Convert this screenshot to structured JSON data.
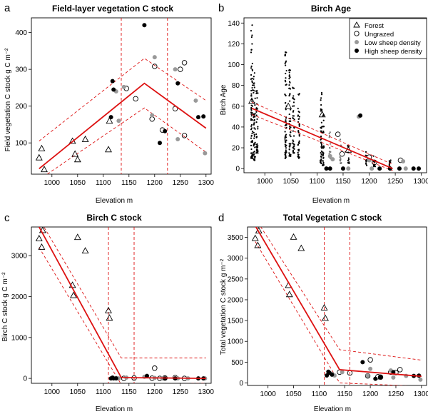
{
  "figure": {
    "panels": [
      "a",
      "b",
      "c",
      "d"
    ]
  },
  "chart_data": [
    {
      "id": "a",
      "letter": "a",
      "type": "scatter",
      "title": "Field-layer vegetation C stock",
      "xlabel": "Elevation m",
      "ylabel": "Field vegetation C stock g C m⁻²",
      "xlim": [
        960,
        1310
      ],
      "ylim": [
        15,
        440
      ],
      "xticks": [
        1000,
        1050,
        1100,
        1150,
        1200,
        1250,
        1300
      ],
      "yticks": [
        100,
        200,
        300,
        400
      ],
      "series": [
        {
          "name": "Forest",
          "marker": "triangle",
          "points": [
            [
              975,
              60
            ],
            [
              980,
              85
            ],
            [
              985,
              28
            ],
            [
              1040,
              105
            ],
            [
              1045,
              70
            ],
            [
              1050,
              55
            ],
            [
              1065,
              110
            ],
            [
              1110,
              82
            ],
            [
              1112,
              160
            ]
          ]
        },
        {
          "name": "Ungrazed",
          "marker": "open-circle",
          "points": [
            [
              1145,
              248
            ],
            [
              1163,
              220
            ],
            [
              1195,
              165
            ],
            [
              1200,
              308
            ],
            [
              1215,
              135
            ],
            [
              1240,
              193
            ],
            [
              1250,
              300
            ],
            [
              1258,
              318
            ],
            [
              1258,
              120
            ]
          ]
        },
        {
          "name": "Low sheep density",
          "marker": "grey-dot",
          "points": [
            [
              1125,
              240
            ],
            [
              1130,
              160
            ],
            [
              1140,
              252
            ],
            [
              1195,
              175
            ],
            [
              1200,
              333
            ],
            [
              1240,
              300
            ],
            [
              1245,
              110
            ],
            [
              1280,
              215
            ],
            [
              1298,
              72
            ]
          ]
        },
        {
          "name": "High sheep density",
          "marker": "black-dot",
          "points": [
            [
              1115,
              170
            ],
            [
              1118,
              268
            ],
            [
              1120,
              245
            ],
            [
              1180,
              420
            ],
            [
              1210,
              100
            ],
            [
              1220,
              132
            ],
            [
              1245,
              262
            ],
            [
              1285,
              170
            ],
            [
              1295,
              172
            ]
          ]
        }
      ],
      "fit": [
        [
          975,
          30
        ],
        [
          1180,
          262
        ],
        [
          1300,
          140
        ]
      ],
      "ci_upper": [
        [
          975,
          105
        ],
        [
          1180,
          330
        ],
        [
          1300,
          215
        ]
      ],
      "ci_lower": [
        [
          975,
          0
        ],
        [
          1180,
          195
        ],
        [
          1300,
          75
        ]
      ],
      "breakpoint_ci": [
        1135,
        1225
      ]
    },
    {
      "id": "b",
      "letter": "b",
      "type": "scatter",
      "title": "Birch Age",
      "xlabel": "Elevation m",
      "ylabel": "Birch Age",
      "xlim": [
        960,
        1310
      ],
      "ylim": [
        -4,
        145
      ],
      "xticks": [
        1000,
        1050,
        1100,
        1150,
        1200,
        1250,
        1300
      ],
      "yticks": [
        0,
        20,
        40,
        60,
        80,
        100,
        120,
        140
      ],
      "legend": {
        "position": "top-right",
        "items": [
          {
            "label": "Forest",
            "marker": "triangle"
          },
          {
            "label": "Ungrazed",
            "marker": "open-circle"
          },
          {
            "label": "Low sheep density",
            "marker": "grey-dot"
          },
          {
            "label": "High sheep density",
            "marker": "black-dot"
          }
        ]
      },
      "columns": [
        {
          "x": 975,
          "ymin": 10,
          "ymax": 138,
          "marker": "tiny-black"
        },
        {
          "x": 980,
          "ymin": 8,
          "ymax": 92,
          "marker": "tiny-black"
        },
        {
          "x": 985,
          "ymin": 15,
          "ymax": 75,
          "marker": "tiny-black"
        },
        {
          "x": 1040,
          "ymin": 10,
          "ymax": 112,
          "marker": "tiny-black"
        },
        {
          "x": 1048,
          "ymin": 12,
          "ymax": 95,
          "marker": "tiny-black"
        },
        {
          "x": 1055,
          "ymin": 15,
          "ymax": 78,
          "marker": "tiny-black"
        },
        {
          "x": 1065,
          "ymin": 10,
          "ymax": 72,
          "marker": "tiny-black"
        },
        {
          "x": 1108,
          "ymin": 5,
          "ymax": 73,
          "marker": "tiny-black"
        },
        {
          "x": 1112,
          "ymin": 3,
          "ymax": 52,
          "marker": "tiny-black"
        },
        {
          "x": 1125,
          "ymin": 10,
          "ymax": 35,
          "marker": "tiny-grey"
        },
        {
          "x": 1145,
          "ymin": 5,
          "ymax": 28,
          "marker": "tiny-grey"
        },
        {
          "x": 1160,
          "ymin": 5,
          "ymax": 22,
          "marker": "tiny-black"
        },
        {
          "x": 1195,
          "ymin": 3,
          "ymax": 16,
          "marker": "tiny-black"
        },
        {
          "x": 1210,
          "ymin": 2,
          "ymax": 12,
          "marker": "tiny-black"
        },
        {
          "x": 1240,
          "ymin": 2,
          "ymax": 8,
          "marker": "tiny-black"
        }
      ],
      "points": [
        {
          "x": 975,
          "y": 65,
          "marker": "triangle"
        },
        {
          "x": 1045,
          "y": 60,
          "marker": "triangle"
        },
        {
          "x": 1110,
          "y": 52,
          "marker": "triangle"
        },
        {
          "x": 1160,
          "y": 18,
          "marker": "triangle"
        },
        {
          "x": 1140,
          "y": 33,
          "marker": "open-circle"
        },
        {
          "x": 1148,
          "y": 14,
          "marker": "open-circle"
        },
        {
          "x": 1200,
          "y": 11,
          "marker": "open-circle"
        },
        {
          "x": 1210,
          "y": 6,
          "marker": "open-circle"
        },
        {
          "x": 1260,
          "y": 8,
          "marker": "open-circle"
        },
        {
          "x": 1125,
          "y": 12,
          "marker": "grey-dot"
        },
        {
          "x": 1180,
          "y": 50,
          "marker": "grey-dot"
        },
        {
          "x": 1200,
          "y": 8,
          "marker": "grey-dot"
        },
        {
          "x": 1265,
          "y": 7,
          "marker": "grey-dot"
        },
        {
          "x": 1130,
          "y": 9,
          "marker": "grey-dot"
        },
        {
          "x": 1183,
          "y": 51,
          "marker": "black-dot"
        },
        {
          "x": 1285,
          "y": 0,
          "marker": "black-dot"
        },
        {
          "x": 1295,
          "y": 0,
          "marker": "black-dot"
        },
        {
          "x": 1118,
          "y": 0,
          "marker": "black-dot"
        },
        {
          "x": 1125,
          "y": 0,
          "marker": "black-dot"
        },
        {
          "x": 1150,
          "y": 0,
          "marker": "black-dot"
        },
        {
          "x": 1220,
          "y": 0,
          "marker": "black-dot"
        },
        {
          "x": 1240,
          "y": 0,
          "marker": "black-dot"
        },
        {
          "x": 1258,
          "y": 0,
          "marker": "black-dot"
        },
        {
          "x": 1160,
          "y": 0,
          "marker": "grey-dot"
        },
        {
          "x": 1205,
          "y": 0,
          "marker": "grey-dot"
        },
        {
          "x": 1270,
          "y": 0,
          "marker": "grey-dot"
        }
      ],
      "fit": [
        [
          975,
          58
        ],
        [
          1245,
          0
        ]
      ],
      "ci_upper": [
        [
          975,
          64
        ],
        [
          1245,
          4
        ]
      ],
      "ci_lower": [
        [
          975,
          52
        ],
        [
          1245,
          -2
        ]
      ]
    },
    {
      "id": "c",
      "letter": "c",
      "type": "scatter",
      "title": "Birch C stock",
      "xlabel": "Elevation m",
      "ylabel": "Birch C stock g C m⁻²",
      "xlim": [
        960,
        1310
      ],
      "ylim": [
        -120,
        3700
      ],
      "xticks": [
        1000,
        1050,
        1100,
        1150,
        1200,
        1250,
        1300
      ],
      "yticks": [
        0,
        1000,
        2000,
        3000
      ],
      "series": [
        {
          "name": "Forest",
          "marker": "triangle",
          "points": [
            [
              975,
              3420
            ],
            [
              980,
              3210
            ],
            [
              982,
              3620
            ],
            [
              1040,
              2280
            ],
            [
              1042,
              2030
            ],
            [
              1050,
              3450
            ],
            [
              1065,
              3120
            ],
            [
              1110,
              1660
            ],
            [
              1112,
              1480
            ]
          ]
        },
        {
          "name": "Ungrazed",
          "marker": "open-circle",
          "points": [
            [
              1140,
              0
            ],
            [
              1160,
              10
            ],
            [
              1195,
              5
            ],
            [
              1200,
              250
            ],
            [
              1210,
              0
            ],
            [
              1220,
              10
            ],
            [
              1240,
              20
            ],
            [
              1258,
              0
            ]
          ]
        },
        {
          "name": "Low sheep density",
          "marker": "grey-dot",
          "points": [
            [
              1125,
              10
            ],
            [
              1130,
              0
            ],
            [
              1145,
              20
            ],
            [
              1180,
              40
            ],
            [
              1200,
              10
            ],
            [
              1215,
              0
            ],
            [
              1245,
              0
            ],
            [
              1265,
              0
            ],
            [
              1298,
              0
            ]
          ]
        },
        {
          "name": "High sheep density",
          "marker": "black-dot",
          "points": [
            [
              1115,
              0
            ],
            [
              1118,
              20
            ],
            [
              1120,
              0
            ],
            [
              1125,
              0
            ],
            [
              1185,
              60
            ],
            [
              1220,
              0
            ],
            [
              1240,
              0
            ],
            [
              1285,
              0
            ],
            [
              1295,
              0
            ]
          ]
        }
      ],
      "fit": [
        [
          975,
          3700
        ],
        [
          1135,
          20
        ],
        [
          1300,
          0
        ]
      ],
      "ci_upper": [
        [
          975,
          3900
        ],
        [
          1135,
          500
        ],
        [
          1300,
          500
        ]
      ],
      "ci_lower": [
        [
          975,
          3200
        ],
        [
          1135,
          -150
        ],
        [
          1300,
          -120
        ]
      ],
      "breakpoint_ci": [
        1110,
        1160
      ]
    },
    {
      "id": "d",
      "letter": "d",
      "type": "scatter",
      "title": "Total Vegetation C stock",
      "xlabel": "Elevation m",
      "ylabel": "Total vegetation C stock g m⁻²",
      "xlim": [
        960,
        1310
      ],
      "ylim": [
        -60,
        3750
      ],
      "xticks": [
        1000,
        1050,
        1100,
        1150,
        1200,
        1250,
        1300
      ],
      "yticks": [
        0,
        500,
        1000,
        1500,
        2000,
        2500,
        3000,
        3500
      ],
      "series": [
        {
          "name": "Forest",
          "marker": "triangle",
          "points": [
            [
              975,
              3480
            ],
            [
              980,
              3310
            ],
            [
              982,
              3660
            ],
            [
              1040,
              2350
            ],
            [
              1042,
              2130
            ],
            [
              1050,
              3510
            ],
            [
              1065,
              3240
            ],
            [
              1110,
              1810
            ],
            [
              1112,
              1560
            ]
          ]
        },
        {
          "name": "Ungrazed",
          "marker": "open-circle",
          "points": [
            [
              1140,
              260
            ],
            [
              1160,
              240
            ],
            [
              1195,
              170
            ],
            [
              1200,
              555
            ],
            [
              1215,
              150
            ],
            [
              1220,
              140
            ],
            [
              1240,
              260
            ],
            [
              1250,
              250
            ],
            [
              1258,
              320
            ]
          ]
        },
        {
          "name": "Low sheep density",
          "marker": "grey-dot",
          "points": [
            [
              1125,
              220
            ],
            [
              1130,
              180
            ],
            [
              1145,
              260
            ],
            [
              1195,
              175
            ],
            [
              1200,
              340
            ],
            [
              1240,
              300
            ],
            [
              1245,
              130
            ],
            [
              1270,
              170
            ],
            [
              1298,
              80
            ]
          ]
        },
        {
          "name": "High sheep density",
          "marker": "black-dot",
          "points": [
            [
              1115,
              180
            ],
            [
              1118,
              270
            ],
            [
              1120,
              245
            ],
            [
              1125,
              200
            ],
            [
              1185,
              500
            ],
            [
              1210,
              100
            ],
            [
              1220,
              140
            ],
            [
              1245,
              260
            ],
            [
              1285,
              170
            ],
            [
              1295,
              175
            ]
          ]
        }
      ],
      "fit": [
        [
          975,
          3780
        ],
        [
          1140,
          320
        ],
        [
          1300,
          160
        ]
      ],
      "ci_upper": [
        [
          975,
          3960
        ],
        [
          1140,
          800
        ],
        [
          1300,
          550
        ]
      ],
      "ci_lower": [
        [
          975,
          3400
        ],
        [
          1140,
          0
        ],
        [
          1300,
          -80
        ]
      ],
      "breakpoint_ci": [
        1110,
        1160
      ]
    }
  ]
}
